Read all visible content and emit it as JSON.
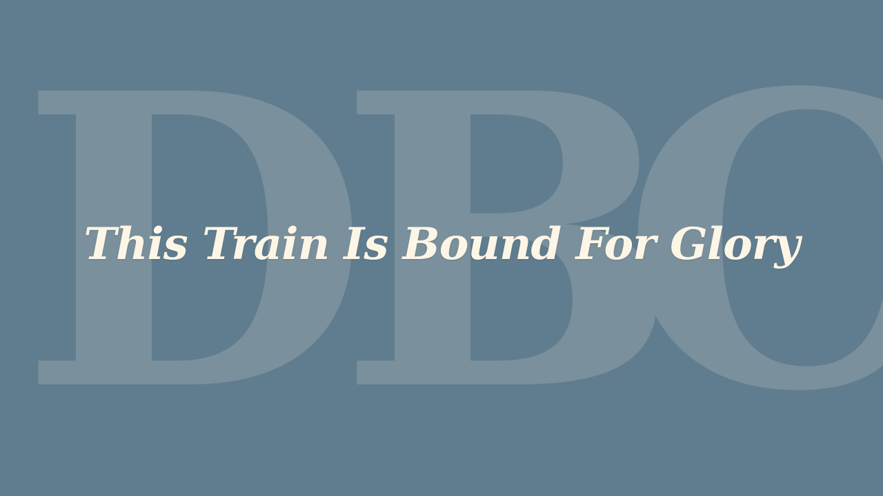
{
  "slide": {
    "watermark_letters": [
      "D",
      "B",
      "C"
    ],
    "title": "This Train Is Bound For Glory"
  },
  "colors": {
    "background": "#607d8f",
    "watermark": "#7a909c",
    "title_text": "#fdf6e6"
  }
}
